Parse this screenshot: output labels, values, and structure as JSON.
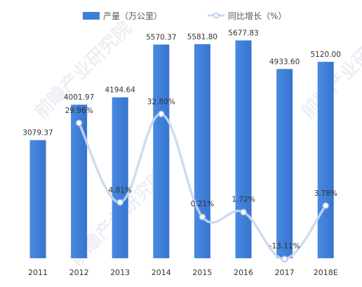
{
  "chart_data": {
    "type": "bar",
    "categories": [
      "2011",
      "2012",
      "2013",
      "2014",
      "2015",
      "2016",
      "2017",
      "2018E"
    ],
    "series": [
      {
        "name": "产量（万公里）",
        "type": "bar",
        "color": "#3f7fd9",
        "values": [
          3079.37,
          4001.97,
          4194.64,
          5570.37,
          5581.8,
          5677.83,
          4933.6,
          5120.0
        ],
        "value_labels": [
          "3079.37",
          "4001.97",
          "4194.64",
          "5570.37",
          "5581.80",
          "5677.83",
          "4933.60",
          "5120.00"
        ]
      },
      {
        "name": "同比增长（%）",
        "type": "line",
        "smooth": true,
        "color": "#c9d8ee",
        "marker_color": "#ffffff",
        "values": [
          null,
          29.96,
          4.81,
          32.8,
          0.21,
          1.72,
          -13.11,
          3.78
        ],
        "value_labels": [
          "",
          "29.96%",
          "4.81%",
          "32.80%",
          "0.21%",
          "1.72%",
          "-13.11%",
          "3.78%"
        ]
      }
    ],
    "bar_ylim": [
      0,
      6000
    ],
    "line_ylim": [
      -20,
      60
    ],
    "legend": "top-center",
    "grid": false
  }
}
